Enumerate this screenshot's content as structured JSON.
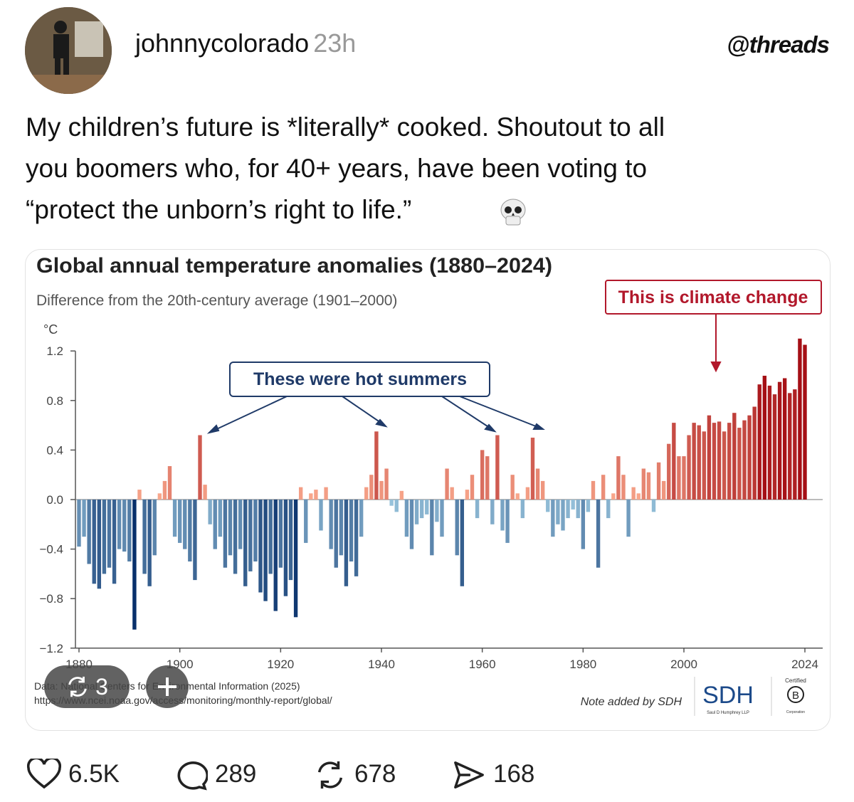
{
  "post": {
    "username": "johnnycolorado",
    "time": "23h",
    "app": "threads",
    "lines": [
      "My children’s future is *literally* cooked. Shoutout to all",
      "you boomers who, for 40+ years, have been voting to",
      "“protect the unborn’s right to life.”"
    ],
    "media_count": "3",
    "likes": "6.5K",
    "comments": "289",
    "reposts": "678",
    "shares": "168"
  },
  "chart_data": {
    "type": "bar",
    "title": "Global annual temperature anomalies (1880–2024)",
    "subtitle": "Difference from the 20th-century average (1901–2000)",
    "y_unit": "°C",
    "annotations": [
      "These were hot summers",
      "This is climate change"
    ],
    "source": [
      "Data: National Centers for Environmental Information (2025)",
      "https://www.ncei.noaa.gov/access/monitoring/monthly-report/global/"
    ],
    "note": "Note added by SDH",
    "logo": {
      "mark": "SDH",
      "name": "Saul D Humphrey LLP",
      "certified": "Certified",
      "b": "B",
      "corporation": "Corporation"
    },
    "x": [
      1880,
      1881,
      1882,
      1883,
      1884,
      1885,
      1886,
      1887,
      1888,
      1889,
      1890,
      1891,
      1892,
      1893,
      1894,
      1895,
      1896,
      1897,
      1898,
      1899,
      1900,
      1901,
      1902,
      1903,
      1904,
      1905,
      1906,
      1907,
      1908,
      1909,
      1910,
      1911,
      1912,
      1913,
      1914,
      1915,
      1916,
      1917,
      1918,
      1919,
      1920,
      1921,
      1922,
      1923,
      1924,
      1925,
      1926,
      1927,
      1928,
      1929,
      1930,
      1931,
      1932,
      1933,
      1934,
      1935,
      1936,
      1937,
      1938,
      1939,
      1940,
      1941,
      1942,
      1943,
      1944,
      1945,
      1946,
      1947,
      1948,
      1949,
      1950,
      1951,
      1952,
      1953,
      1954,
      1955,
      1956,
      1957,
      1958,
      1959,
      1960,
      1961,
      1962,
      1963,
      1964,
      1965,
      1966,
      1967,
      1968,
      1969,
      1970,
      1971,
      1972,
      1973,
      1974,
      1975,
      1976,
      1977,
      1978,
      1979,
      1980,
      1981,
      1982,
      1983,
      1984,
      1985,
      1986,
      1987,
      1988,
      1989,
      1990,
      1991,
      1992,
      1993,
      1994,
      1995,
      1996,
      1997,
      1998,
      1999,
      2000,
      2001,
      2002,
      2003,
      2004,
      2005,
      2006,
      2007,
      2008,
      2009,
      2010,
      2011,
      2012,
      2013,
      2014,
      2015,
      2016,
      2017,
      2018,
      2019,
      2020,
      2021,
      2022,
      2023,
      2024
    ],
    "values": [
      -0.38,
      -0.3,
      -0.52,
      -0.68,
      -0.72,
      -0.6,
      -0.55,
      -0.68,
      -0.4,
      -0.42,
      -0.5,
      -1.05,
      0.08,
      -0.6,
      -0.7,
      -0.45,
      0.05,
      0.15,
      0.27,
      -0.3,
      -0.35,
      -0.4,
      -0.5,
      -0.65,
      0.52,
      0.12,
      -0.2,
      -0.4,
      -0.3,
      -0.55,
      -0.45,
      -0.6,
      -0.4,
      -0.7,
      -0.58,
      -0.5,
      -0.75,
      -0.82,
      -0.6,
      -0.9,
      -0.55,
      -0.78,
      -0.65,
      -0.95,
      0.1,
      -0.35,
      0.05,
      0.08,
      -0.25,
      0.1,
      -0.4,
      -0.55,
      -0.45,
      -0.7,
      -0.5,
      -0.62,
      -0.3,
      0.1,
      0.2,
      0.55,
      0.15,
      0.25,
      -0.05,
      -0.1,
      0.07,
      -0.3,
      -0.4,
      -0.2,
      -0.15,
      -0.12,
      -0.45,
      -0.18,
      -0.3,
      0.25,
      0.1,
      -0.45,
      -0.7,
      0.08,
      0.2,
      -0.15,
      0.4,
      0.35,
      -0.2,
      0.52,
      -0.25,
      -0.35,
      0.2,
      0.05,
      -0.15,
      0.1,
      0.5,
      0.25,
      0.15,
      -0.1,
      -0.3,
      -0.2,
      -0.25,
      -0.15,
      -0.08,
      -0.15,
      -0.4,
      -0.1,
      0.15,
      -0.55,
      0.2,
      -0.15,
      0.05,
      0.35,
      0.2,
      -0.3,
      0.1,
      0.05,
      0.25,
      0.22,
      -0.1,
      0.3,
      0.15,
      0.45,
      0.62,
      0.35,
      0.35,
      0.52,
      0.62,
      0.6,
      0.55,
      0.68,
      0.62,
      0.63,
      0.55,
      0.62,
      0.7,
      0.58,
      0.64,
      0.68,
      0.75,
      0.93,
      1.0,
      0.92,
      0.85,
      0.95,
      0.98,
      0.86,
      0.89,
      1.3,
      1.25
    ],
    "colors": {
      "negative": [
        "#9ecae1",
        "#08306b"
      ],
      "positive": [
        "#fcae91",
        "#a50f15"
      ]
    },
    "xlim": [
      1880,
      2024
    ],
    "xticks": [
      1880,
      1900,
      1920,
      1940,
      1960,
      1980,
      2000,
      2024
    ],
    "ylim": [
      -1.2,
      1.2
    ],
    "yticks": [
      1.2,
      0.8,
      0.4,
      {
        "value": 0,
        "label": "0.0"
      },
      {
        "value": -0.4,
        "label": "−0.4"
      },
      {
        "value": -0.8,
        "label": "−0.8"
      },
      {
        "value": -1.2,
        "label": "−1.2"
      }
    ],
    "grid": false
  }
}
